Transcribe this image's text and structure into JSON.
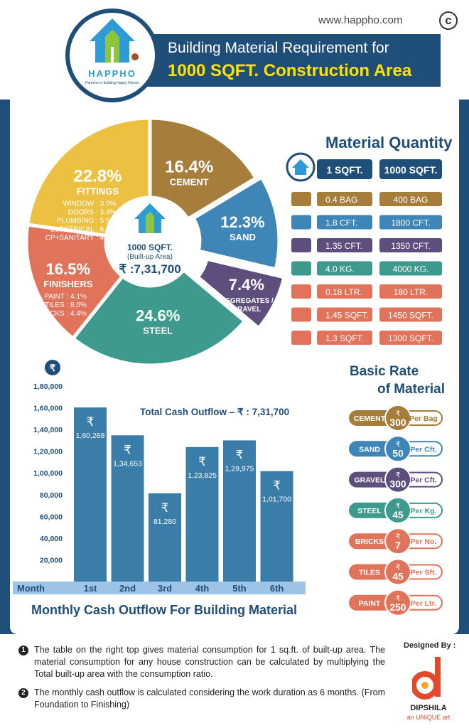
{
  "site": "www.happho.com",
  "copyright_symbol": "c",
  "logo": {
    "name": "HAPPHO",
    "tagline": "Partners in building Happy Homes"
  },
  "title": {
    "line1": "Building Material Requirement for",
    "line2": "1000 SQFT. Construction Area"
  },
  "center": {
    "area": "1000 SQFT.",
    "area_sub": "(Built-up Area)",
    "total": "₹ :7,31,700"
  },
  "colors": {
    "fittings": "#ecc041",
    "cement": "#a77d3b",
    "sand": "#3f86b8",
    "aggregates": "#5e4e7d",
    "steel": "#3e9a8c",
    "finishers": "#e0735a",
    "navy": "#1f4e79",
    "bar": "#3a7da9"
  },
  "chart_data": [
    {
      "type": "pie",
      "slices": [
        {
          "name": "CEMENT",
          "value": 16.4,
          "label": "16.4%",
          "color": "#a77d3b"
        },
        {
          "name": "SAND",
          "value": 12.3,
          "label": "12.3%",
          "color": "#3f86b8"
        },
        {
          "name": "AGGREGATES / GRAVEL",
          "value": 7.4,
          "label": "7.4%",
          "color": "#5e4e7d"
        },
        {
          "name": "STEEL",
          "value": 24.6,
          "label": "24.6%",
          "color": "#3e9a8c"
        },
        {
          "name": "FINISHERS",
          "value": 16.5,
          "label": "16.5%",
          "color": "#e0735a",
          "details": [
            "PAINT : 4.1%",
            "TILES : 8.0%",
            "BRICKS : 4.4%"
          ]
        },
        {
          "name": "FITTINGS",
          "value": 22.8,
          "label": "22.8%",
          "color": "#ecc041",
          "details": [
            "WINDOW : 3.0%",
            "DOORS : 3.4%",
            "PLUMBING : 5.5%",
            "ELECTRICAL : 6.8%",
            "CP+SANITARY : 4.1%"
          ]
        }
      ]
    },
    {
      "type": "bar",
      "title": "Monthly Cash Outflow For Building Material",
      "annotation": "Total Cash Outflow – ₹ : 7,31,700",
      "currency_symbol": "₹",
      "xlabel": "Month",
      "categories": [
        "1st",
        "2nd",
        "3rd",
        "4th",
        "5th",
        "6th"
      ],
      "values": [
        160268,
        134653,
        81280,
        123825,
        129975,
        101700
      ],
      "value_labels": [
        "1,60,268",
        "1,34,653",
        "81,280",
        "1,23,825",
        "1,29,975",
        "1,01,700"
      ],
      "yticks": [
        "20,000",
        "40,000",
        "60,000",
        "80,000",
        "1,00,000",
        "1,20,000",
        "1,40,000",
        "1,60,000",
        "1,80,000"
      ],
      "ytick_values": [
        20000,
        40000,
        60000,
        80000,
        100000,
        120000,
        140000,
        160000,
        180000
      ],
      "ylim": [
        0,
        180000
      ]
    }
  ],
  "material_quantity": {
    "title": "Material Quantity",
    "headers": [
      "1 SQFT.",
      "1000 SQFT."
    ],
    "rows": [
      {
        "item": "cement",
        "icon": "cement-bag-icon",
        "per_sqft": "0.4 BAG",
        "per_1000": "400 BAG",
        "color": "#a77d3b"
      },
      {
        "item": "sand",
        "icon": "sand-pile-icon",
        "per_sqft": "1.8 CFT.",
        "per_1000": "1800 CFT.",
        "color": "#3f86b8"
      },
      {
        "item": "aggregates",
        "icon": "aggregate-pile-icon",
        "per_sqft": "1.35 CFT.",
        "per_1000": "1350 CFT.",
        "color": "#5e4e7d"
      },
      {
        "item": "steel",
        "icon": "steel-bars-icon",
        "per_sqft": "4.0 KG.",
        "per_1000": "4000 KG.",
        "color": "#3e9a8c"
      },
      {
        "item": "paint",
        "icon": "paint-brush-icon",
        "per_sqft": "0.18 LTR.",
        "per_1000": "180 LTR.",
        "color": "#e0735a"
      },
      {
        "item": "bricks",
        "icon": "brick-wall-icon",
        "per_sqft": "1.45 SQFT.",
        "per_1000": "1450 SQFT.",
        "color": "#e0735a"
      },
      {
        "item": "tiles",
        "icon": "tiles-stack-icon",
        "per_sqft": "1.3 SQFT.",
        "per_1000": "1300 SQFT.",
        "color": "#e0735a"
      }
    ]
  },
  "basic_rate": {
    "title_line1": "Basic Rate",
    "title_line2": "of Material",
    "currency_symbol": "₹",
    "rows": [
      {
        "material": "CEMENT",
        "rate": "300",
        "unit": "Per Bag",
        "color": "#a77d3b"
      },
      {
        "material": "SAND",
        "rate": "50",
        "unit": "Per Cft.",
        "color": "#3f86b8"
      },
      {
        "material": "GRAVEL",
        "rate": "300",
        "unit": "Per Cft.",
        "color": "#5e4e7d"
      },
      {
        "material": "STEEL",
        "rate": "45",
        "unit": "Per Kg.",
        "color": "#3e9a8c"
      },
      {
        "material": "BRICKS",
        "rate": "7",
        "unit": "Per No.",
        "color": "#e0735a"
      },
      {
        "material": "TILES",
        "rate": "45",
        "unit": "Per Sft.",
        "color": "#e0735a"
      },
      {
        "material": "PAINT",
        "rate": "250",
        "unit": "Per Ltr.",
        "color": "#e0735a"
      }
    ]
  },
  "notes": [
    {
      "marker": "1",
      "text": "The table on the right top gives material consumption for 1 sq.ft. of built-up area. The material consumption for any house construction can be calculated by multiplying the Total built-up area with the consumption ratio."
    },
    {
      "marker": "2",
      "text": "The monthly cash outflow is calculated considering the work duration as 6 months. (From Foundation to Finishing)"
    }
  ],
  "credit": {
    "label": "Designed By :",
    "brand": "DIPSHILA",
    "tagline": "an UNIQUE art"
  }
}
